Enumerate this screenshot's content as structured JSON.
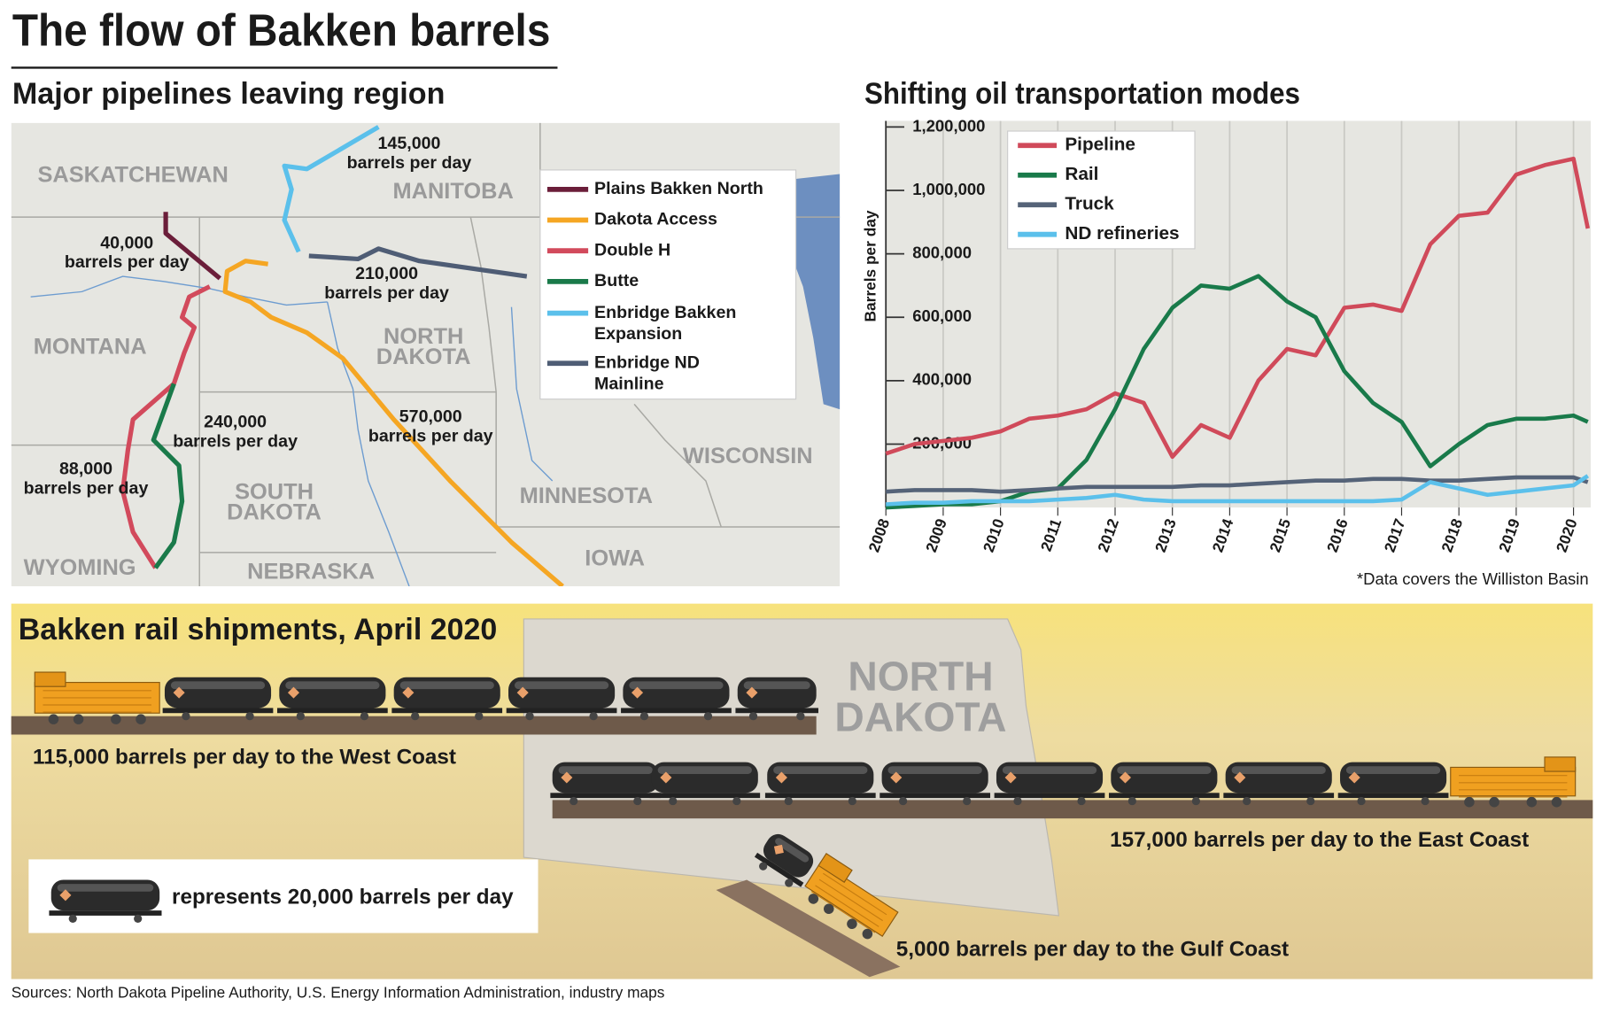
{
  "title": "The flow of Bakken barrels",
  "map": {
    "title": "Major pipelines leaving region",
    "regions": [
      [
        "SASKATCHEWAN"
      ],
      [
        "MANITOBA"
      ],
      [
        "MONTANA"
      ],
      [
        "NORTH",
        "DAKOTA"
      ],
      [
        "SOUTH",
        "DAKOTA"
      ],
      [
        "WYOMING"
      ],
      [
        "NEBRASKA"
      ],
      [
        "MINNESOTA"
      ],
      [
        "IOWA"
      ],
      [
        "WISCONSIN"
      ]
    ],
    "flows": [
      {
        "amount": "145,000",
        "unit": "barrels per day"
      },
      {
        "amount": "40,000",
        "unit": "barrels per day"
      },
      {
        "amount": "210,000",
        "unit": "barrels per day"
      },
      {
        "amount": "570,000",
        "unit": "barrels per day"
      },
      {
        "amount": "240,000",
        "unit": "barrels per day"
      },
      {
        "amount": "88,000",
        "unit": "barrels per day"
      }
    ],
    "pipelines": [
      {
        "lines": [
          "Plains Bakken North"
        ],
        "color": "#6b1e3a"
      },
      {
        "lines": [
          "Dakota Access"
        ],
        "color": "#f5a623"
      },
      {
        "lines": [
          "Double H"
        ],
        "color": "#d24a5c"
      },
      {
        "lines": [
          "Butte"
        ],
        "color": "#1a7a4a"
      },
      {
        "lines": [
          "Enbridge Bakken",
          "Expansion"
        ],
        "color": "#5bc0eb"
      },
      {
        "lines": [
          "Enbridge ND",
          "Mainline"
        ],
        "color": "#4f5d75"
      }
    ]
  },
  "chart_data": {
    "type": "line",
    "title": "Shifting oil transportation modes",
    "y_label": "Barrels per day",
    "note": "*Data covers the Williston Basin",
    "x": [
      2008,
      2008.5,
      2009,
      2009.5,
      2010,
      2010.5,
      2011,
      2011.5,
      2012,
      2012.5,
      2013,
      2013.5,
      2014,
      2014.5,
      2015,
      2015.5,
      2016,
      2016.5,
      2017,
      2017.5,
      2018,
      2018.5,
      2019,
      2019.5,
      2020,
      2020.25
    ],
    "xlim": [
      2008,
      2020.3
    ],
    "xticks": [
      2008,
      2009,
      2010,
      2011,
      2012,
      2013,
      2014,
      2015,
      2016,
      2017,
      2018,
      2019,
      2020
    ],
    "ylim": [
      0,
      1200000
    ],
    "yticks": [
      {
        "value": 200000,
        "label": "200,000"
      },
      {
        "value": 400000,
        "label": "400,000"
      },
      {
        "value": 600000,
        "label": "600,000"
      },
      {
        "value": 800000,
        "label": "800,000"
      },
      {
        "value": 1000000,
        "label": "1,000,000"
      },
      {
        "value": 1200000,
        "label": "1,200,000"
      }
    ],
    "grid": true,
    "series": [
      {
        "name": "Pipeline",
        "color": "#d04a5a",
        "values": [
          170000,
          200000,
          210000,
          220000,
          240000,
          280000,
          290000,
          310000,
          360000,
          330000,
          160000,
          260000,
          220000,
          400000,
          500000,
          480000,
          630000,
          640000,
          620000,
          830000,
          920000,
          930000,
          1050000,
          1080000,
          1100000,
          880000
        ]
      },
      {
        "name": "Rail",
        "color": "#197a4a",
        "values": [
          0,
          5000,
          10000,
          10000,
          20000,
          50000,
          60000,
          150000,
          310000,
          500000,
          630000,
          700000,
          690000,
          730000,
          650000,
          600000,
          430000,
          330000,
          270000,
          130000,
          200000,
          260000,
          280000,
          280000,
          290000,
          270000
        ]
      },
      {
        "name": "Truck",
        "color": "#556378",
        "values": [
          50000,
          55000,
          55000,
          55000,
          50000,
          55000,
          60000,
          65000,
          65000,
          65000,
          65000,
          70000,
          70000,
          75000,
          80000,
          85000,
          85000,
          90000,
          90000,
          85000,
          85000,
          90000,
          95000,
          95000,
          95000,
          80000
        ]
      },
      {
        "name": "ND refineries",
        "color": "#5bc0eb",
        "values": [
          10000,
          15000,
          15000,
          20000,
          20000,
          20000,
          25000,
          30000,
          40000,
          25000,
          20000,
          20000,
          20000,
          20000,
          20000,
          20000,
          20000,
          20000,
          25000,
          80000,
          60000,
          40000,
          50000,
          60000,
          70000,
          100000
        ]
      }
    ]
  },
  "rail": {
    "title": "Bakken rail shipments, April 2020",
    "state": [
      "NORTH",
      "DAKOTA"
    ],
    "west": "115,000 barrels per day to the West Coast",
    "east": "157,000 barrels per day to the East Coast",
    "gulf": "5,000 barrels per day to the Gulf Coast",
    "key": "represents 20,000 barrels per day"
  },
  "sources": "Sources: North Dakota Pipeline Authority, U.S. Energy Information Administration, industry maps"
}
